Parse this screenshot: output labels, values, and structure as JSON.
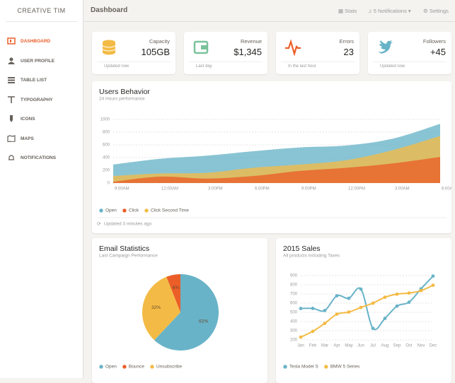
{
  "sidebar": {
    "brand": "CREATIVE TIM",
    "items": [
      "DASHBOARD",
      "USER PROFILE",
      "TABLE LIST",
      "TYPOGRAPHY",
      "ICONS",
      "MAPS",
      "NOTIFICATIONS"
    ]
  },
  "navbar": {
    "title": "Dashboard",
    "links": [
      "Stats",
      "5 Notifications",
      "Settings"
    ]
  },
  "stats": [
    {
      "label": "Capacity",
      "value": "105GB",
      "footer": "Updated now"
    },
    {
      "label": "Revenue",
      "value": "$1,345",
      "footer": "Last day"
    },
    {
      "label": "Errors",
      "value": "23",
      "footer": "In the last hour"
    },
    {
      "label": "Followers",
      "value": "+45",
      "footer": "Updated now"
    }
  ],
  "chart_data": [
    {
      "type": "area",
      "title": "Users Behavior",
      "subtitle": "24 Hours performance",
      "categories": [
        "9:00AM",
        "12:00AM",
        "3:00PM",
        "6:00PM",
        "9:00PM",
        "12:00PM",
        "3:00AM",
        "6:00AM"
      ],
      "series": [
        {
          "name": "Open",
          "color": "#68b3c8",
          "values": [
            290,
            380,
            430,
            500,
            560,
            590,
            700,
            930
          ]
        },
        {
          "name": "Click",
          "color": "#eb5e28",
          "values": [
            20,
            100,
            70,
            110,
            190,
            240,
            310,
            410
          ]
        },
        {
          "name": "Click Second Time",
          "color": "#f3bb45",
          "values": [
            110,
            150,
            160,
            240,
            290,
            360,
            520,
            740
          ]
        }
      ],
      "ylim": [
        0,
        1000
      ],
      "yticks": [
        0,
        200,
        400,
        600,
        800,
        1000
      ],
      "grid": true,
      "footer": "Updated 3 minutes ago"
    },
    {
      "type": "pie",
      "title": "Email Statistics",
      "subtitle": "Last Campaign Performance",
      "categories": [
        "Open",
        "Bounce",
        "Unsubscribe"
      ],
      "values": [
        62,
        6,
        32
      ],
      "value_labels": [
        "62%",
        "6%",
        "32%"
      ],
      "colors": [
        "#68b3c8",
        "#eb5e28",
        "#f3bb45"
      ]
    },
    {
      "type": "line",
      "title": "2015 Sales",
      "subtitle": "All products including Taxes",
      "categories": [
        "Jan",
        "Feb",
        "Mar",
        "Apr",
        "May",
        "Jun",
        "Jul",
        "Aug",
        "Sep",
        "Oct",
        "Nov",
        "Dec"
      ],
      "series": [
        {
          "name": "Tesla Model S",
          "color": "#68b3c8",
          "values": [
            542,
            543,
            520,
            680,
            653,
            753,
            326,
            434,
            568,
            610,
            756,
            895
          ]
        },
        {
          "name": "BMW 5 Series",
          "color": "#f3bb45",
          "values": [
            230,
            293,
            380,
            480,
            503,
            553,
            600,
            664,
            698,
            710,
            736,
            795
          ]
        }
      ],
      "ylim": [
        200,
        900
      ],
      "yticks": [
        200,
        300,
        400,
        500,
        600,
        700,
        800,
        900
      ],
      "grid": true
    }
  ]
}
